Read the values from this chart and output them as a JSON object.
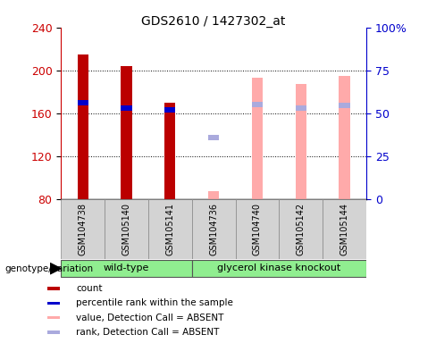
{
  "title": "GDS2610 / 1427302_at",
  "samples": [
    "GSM104738",
    "GSM105140",
    "GSM105141",
    "GSM104736",
    "GSM104740",
    "GSM105142",
    "GSM105144"
  ],
  "group_labels": [
    "wild-type",
    "glycerol kinase knockout"
  ],
  "group1_count": 3,
  "ylim_left": [
    80,
    240
  ],
  "ylim_right": [
    0,
    100
  ],
  "yticks_left": [
    80,
    120,
    160,
    200,
    240
  ],
  "yticks_right": [
    0,
    25,
    50,
    75,
    100
  ],
  "yticklabels_right": [
    "0",
    "25",
    "50",
    "75",
    "100%"
  ],
  "count_values": [
    215,
    204,
    170,
    null,
    null,
    null,
    null
  ],
  "count_color": "#bb0000",
  "rank_values": [
    170,
    165,
    163,
    null,
    null,
    null,
    null
  ],
  "rank_color": "#0000cc",
  "absent_value_values": [
    null,
    null,
    null,
    87,
    193,
    187,
    195
  ],
  "absent_value_color": "#ffaaaa",
  "absent_rank_values": [
    null,
    null,
    null,
    137,
    168,
    165,
    167
  ],
  "absent_rank_color": "#aaaadd",
  "bg_color": "#ffffff",
  "left_axis_color": "#cc0000",
  "right_axis_color": "#0000cc",
  "genotype_label": "genotype/variation",
  "legend_items": [
    [
      "#bb0000",
      "count"
    ],
    [
      "#0000cc",
      "percentile rank within the sample"
    ],
    [
      "#ffaaaa",
      "value, Detection Call = ABSENT"
    ],
    [
      "#aaaadd",
      "rank, Detection Call = ABSENT"
    ]
  ],
  "bar_width": 0.25,
  "rank_bar_height": 5,
  "group_bg_color": "#90ee90",
  "sample_bg_color": "#d3d3d3"
}
